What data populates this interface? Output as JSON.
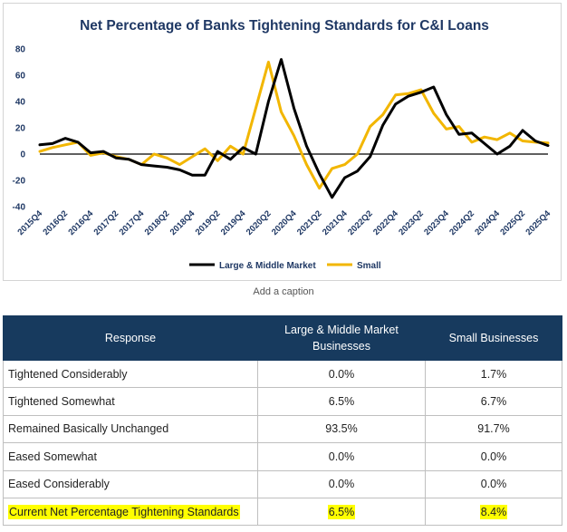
{
  "chart_data": {
    "type": "line",
    "title": "Net Percentage of Banks Tightening Standards for C&I Loans",
    "xlabel": "",
    "ylabel": "",
    "ylim": [
      -40,
      80
    ],
    "yticks": [
      80,
      60,
      40,
      20,
      0,
      -20,
      -40
    ],
    "tick_labels": [
      "2015Q4",
      "2016Q2",
      "2016Q4",
      "2017Q2",
      "2017Q4",
      "2018Q2",
      "2018Q4",
      "2019Q2",
      "2019Q4",
      "2020Q2",
      "2020Q4",
      "2021Q2",
      "2021Q4",
      "2022Q2",
      "2022Q4",
      "2023Q2",
      "2023Q4",
      "2024Q2",
      "2024Q4",
      "2025Q2",
      "2025Q4"
    ],
    "x": [
      "2015Q4",
      "2016Q1",
      "2016Q2",
      "2016Q3",
      "2016Q4",
      "2017Q1",
      "2017Q2",
      "2017Q3",
      "2017Q4",
      "2018Q1",
      "2018Q2",
      "2018Q3",
      "2018Q4",
      "2019Q1",
      "2019Q2",
      "2019Q3",
      "2019Q4",
      "2020Q1",
      "2020Q2",
      "2020Q3",
      "2020Q4",
      "2021Q1",
      "2021Q2",
      "2021Q3",
      "2021Q4",
      "2022Q1",
      "2022Q2",
      "2022Q3",
      "2022Q4",
      "2023Q1",
      "2023Q2",
      "2023Q3",
      "2023Q4",
      "2024Q1",
      "2024Q2",
      "2024Q3",
      "2024Q4",
      "2025Q1",
      "2025Q2",
      "2025Q3",
      "2025Q4"
    ],
    "series": [
      {
        "name": "Large & Middle Market",
        "color": "#000000",
        "values": [
          7,
          8,
          12,
          9,
          1,
          2,
          -3,
          -4,
          -8,
          -9,
          -10,
          -12,
          -16,
          -16,
          2,
          -4,
          5,
          0,
          40,
          72,
          35,
          6,
          -15,
          -33,
          -18,
          -13,
          -2,
          22,
          38,
          44,
          47,
          51,
          30,
          15,
          16,
          8,
          0,
          6,
          18,
          10,
          6.5
        ]
      },
      {
        "name": "Small",
        "color": "#f2b600",
        "values": [
          2,
          5,
          7,
          9,
          -1,
          1,
          -2,
          -4,
          -8,
          0,
          -3,
          -8,
          -2,
          4,
          -5,
          6,
          0,
          35,
          70,
          32,
          14,
          -8,
          -26,
          -11,
          -8,
          0,
          21,
          30,
          45,
          46,
          49,
          31,
          19,
          21,
          9,
          13,
          11,
          16,
          10,
          9,
          8.4
        ]
      }
    ]
  },
  "caption": "Add a caption",
  "table": {
    "headers": {
      "response": "Response",
      "large_line1": "Large & Middle Market",
      "large_line2": "Businesses",
      "small": "Small Businesses"
    },
    "rows": [
      {
        "response": "Tightened Considerably",
        "large": "0.0%",
        "small": "1.7%"
      },
      {
        "response": "Tightened Somewhat",
        "large": "6.5%",
        "small": "6.7%"
      },
      {
        "response": "Remained Basically Unchanged",
        "large": "93.5%",
        "small": "91.7%"
      },
      {
        "response": "Eased Somewhat",
        "large": "0.0%",
        "small": "0.0%"
      },
      {
        "response": "Eased Considerably",
        "large": "0.0%",
        "small": "0.0%"
      }
    ],
    "summary": {
      "response": "Current Net Percentage Tightening Standards",
      "large": "6.5%",
      "small": "8.4%",
      "highlight": "#ffff00"
    }
  }
}
